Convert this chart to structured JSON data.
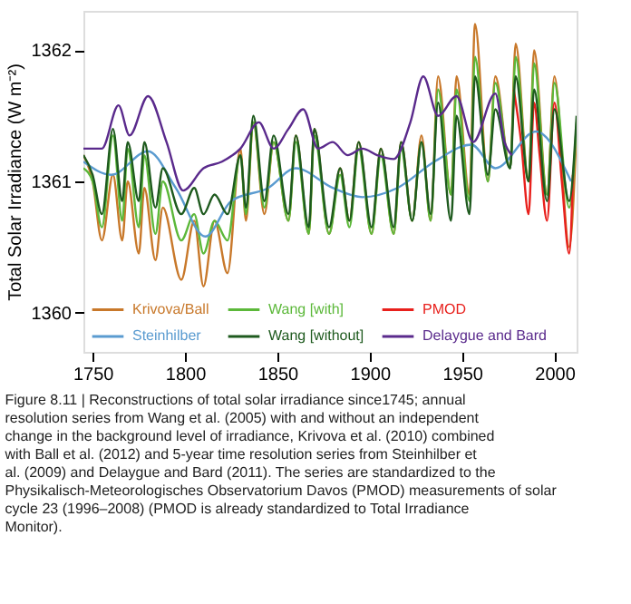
{
  "chart_data": {
    "type": "line",
    "ylabel": "Total Solar Irradiance (W m⁻²)",
    "xlim": [
      1745,
      2012
    ],
    "xticks": [
      1750,
      1800,
      1850,
      1900,
      1950,
      2000
    ],
    "ylim": [
      1359.7,
      1362.3
    ],
    "yticks": [
      1360,
      1361,
      1362
    ],
    "grid": false,
    "legend": "bottom left",
    "line_style": "solid",
    "marker": "none",
    "series": [
      {
        "name": "Krivova/Ball",
        "color": "#c8782a",
        "x": [
          1745,
          1750,
          1755,
          1761,
          1766,
          1769,
          1775,
          1778,
          1784,
          1788,
          1798,
          1805,
          1810,
          1816,
          1823,
          1830,
          1833,
          1837,
          1843,
          1848,
          1856,
          1860,
          1867,
          1870,
          1878,
          1884,
          1889,
          1894,
          1901,
          1906,
          1913,
          1917,
          1923,
          1928,
          1933,
          1937,
          1944,
          1947,
          1954,
          1957,
          1964,
          1968,
          1976,
          1979,
          1986,
          1989,
          1996,
          2000,
          2008,
          2012
        ],
        "values": [
          1361.2,
          1361.0,
          1360.55,
          1361.05,
          1360.55,
          1361.0,
          1360.45,
          1360.95,
          1360.4,
          1360.8,
          1360.25,
          1360.7,
          1360.2,
          1360.7,
          1360.3,
          1361.25,
          1360.7,
          1361.45,
          1360.75,
          1361.3,
          1360.7,
          1361.35,
          1360.6,
          1361.4,
          1360.6,
          1361.1,
          1360.7,
          1361.3,
          1360.6,
          1361.25,
          1360.6,
          1361.3,
          1360.7,
          1361.35,
          1360.7,
          1361.8,
          1360.9,
          1361.8,
          1360.9,
          1362.2,
          1361.0,
          1361.8,
          1361.1,
          1362.05,
          1361.0,
          1362.0,
          1360.9,
          1361.8,
          1360.5,
          1361.4
        ]
      },
      {
        "name": "Wang [with]",
        "color": "#5cb83a",
        "x": [
          1745,
          1750,
          1755,
          1761,
          1766,
          1769,
          1775,
          1778,
          1784,
          1788,
          1798,
          1805,
          1810,
          1816,
          1823,
          1830,
          1833,
          1837,
          1843,
          1848,
          1856,
          1860,
          1867,
          1870,
          1878,
          1884,
          1889,
          1894,
          1901,
          1906,
          1913,
          1917,
          1923,
          1928,
          1933,
          1937,
          1944,
          1947,
          1954,
          1957,
          1964,
          1968,
          1976,
          1979,
          1986,
          1989,
          1996,
          2000,
          2008,
          2012
        ],
        "values": [
          1361.1,
          1361.0,
          1360.65,
          1361.35,
          1360.7,
          1361.25,
          1360.65,
          1361.2,
          1360.6,
          1361.0,
          1360.55,
          1360.75,
          1360.45,
          1360.7,
          1360.55,
          1361.2,
          1360.75,
          1361.45,
          1360.8,
          1361.3,
          1360.7,
          1361.3,
          1360.6,
          1361.35,
          1360.6,
          1361.05,
          1360.65,
          1361.25,
          1360.6,
          1361.2,
          1360.6,
          1361.25,
          1360.7,
          1361.3,
          1360.7,
          1361.7,
          1360.9,
          1361.7,
          1360.85,
          1361.95,
          1361.0,
          1361.75,
          1361.1,
          1361.95,
          1361.0,
          1361.9,
          1360.9,
          1361.75,
          1360.8,
          1361.45
        ]
      },
      {
        "name": "PMOD",
        "color": "#e8201c",
        "x": [
          1978,
          1982,
          1986,
          1989,
          1992,
          1996,
          2000,
          2004,
          2008,
          2010
        ],
        "values": [
          1361.7,
          1361.3,
          1360.75,
          1361.6,
          1361.2,
          1360.7,
          1361.6,
          1361.0,
          1360.45,
          1361.05
        ]
      },
      {
        "name": "Steinhilber",
        "color": "#5a9bd0",
        "x": [
          1745,
          1760,
          1780,
          1795,
          1811,
          1825,
          1845,
          1860,
          1880,
          1896,
          1915,
          1935,
          1955,
          1968,
          1990,
          2009
        ],
        "values": [
          1361.15,
          1361.05,
          1361.23,
          1360.95,
          1360.58,
          1360.85,
          1360.95,
          1361.1,
          1360.95,
          1360.88,
          1360.95,
          1361.15,
          1361.28,
          1361.1,
          1361.38,
          1361.0
        ]
      },
      {
        "name": "Wang [without]",
        "color": "#1e5a1e",
        "x": [
          1745,
          1750,
          1755,
          1761,
          1766,
          1769,
          1775,
          1778,
          1784,
          1788,
          1798,
          1805,
          1810,
          1816,
          1823,
          1830,
          1833,
          1837,
          1843,
          1848,
          1856,
          1860,
          1867,
          1870,
          1878,
          1884,
          1889,
          1894,
          1901,
          1906,
          1913,
          1917,
          1923,
          1928,
          1933,
          1937,
          1944,
          1947,
          1954,
          1957,
          1964,
          1968,
          1976,
          1979,
          1986,
          1989,
          1996,
          2000,
          2008,
          2012
        ],
        "values": [
          1361.2,
          1361.05,
          1360.75,
          1361.4,
          1360.85,
          1361.3,
          1360.85,
          1361.3,
          1360.8,
          1361.1,
          1360.75,
          1360.95,
          1360.75,
          1360.9,
          1360.75,
          1361.2,
          1360.8,
          1361.5,
          1360.85,
          1361.35,
          1360.75,
          1361.35,
          1360.65,
          1361.4,
          1360.65,
          1361.1,
          1360.7,
          1361.3,
          1360.65,
          1361.25,
          1360.65,
          1361.3,
          1360.7,
          1361.3,
          1360.75,
          1361.6,
          1360.7,
          1361.5,
          1360.75,
          1361.8,
          1361.05,
          1361.55,
          1361.1,
          1361.8,
          1361.0,
          1361.7,
          1360.85,
          1361.55,
          1360.85,
          1361.5
        ]
      },
      {
        "name": "Delaygue and Bard",
        "color": "#5a2a8c",
        "x": [
          1745,
          1755,
          1764,
          1770,
          1780,
          1790,
          1799,
          1810,
          1820,
          1830,
          1840,
          1848,
          1856,
          1864,
          1872,
          1880,
          1888,
          1896,
          1904,
          1913,
          1922,
          1929,
          1937,
          1947,
          1956,
          1968,
          1973,
          1977
        ],
        "values": [
          1361.25,
          1361.25,
          1361.58,
          1361.35,
          1361.65,
          1361.3,
          1360.93,
          1361.1,
          1361.15,
          1361.25,
          1361.45,
          1361.25,
          1361.4,
          1361.55,
          1361.25,
          1361.3,
          1361.2,
          1361.25,
          1361.2,
          1361.17,
          1361.45,
          1361.8,
          1361.5,
          1361.65,
          1361.3,
          1361.67,
          1361.3,
          1361.2
        ]
      }
    ],
    "annotations": [
      "Figure 8.11 | Reconstructions of total solar irradiance since1745; annual resolution series from Wang et al. (2005) with and without an independent change in the background level of irradiance, Krivova et al. (2010) combined with Ball et al. (2012) and 5-year time resolution series from Steinhilber et al. (2009) and Delaygue and Bard (2011). The series are standardized to the Physikalisch-Meteorologisches Observatorium Davos (PMOD) measurements of solar cycle 23 (1996–2008) (PMOD is already standardized to Total Irradiance Monitor)."
    ]
  }
}
